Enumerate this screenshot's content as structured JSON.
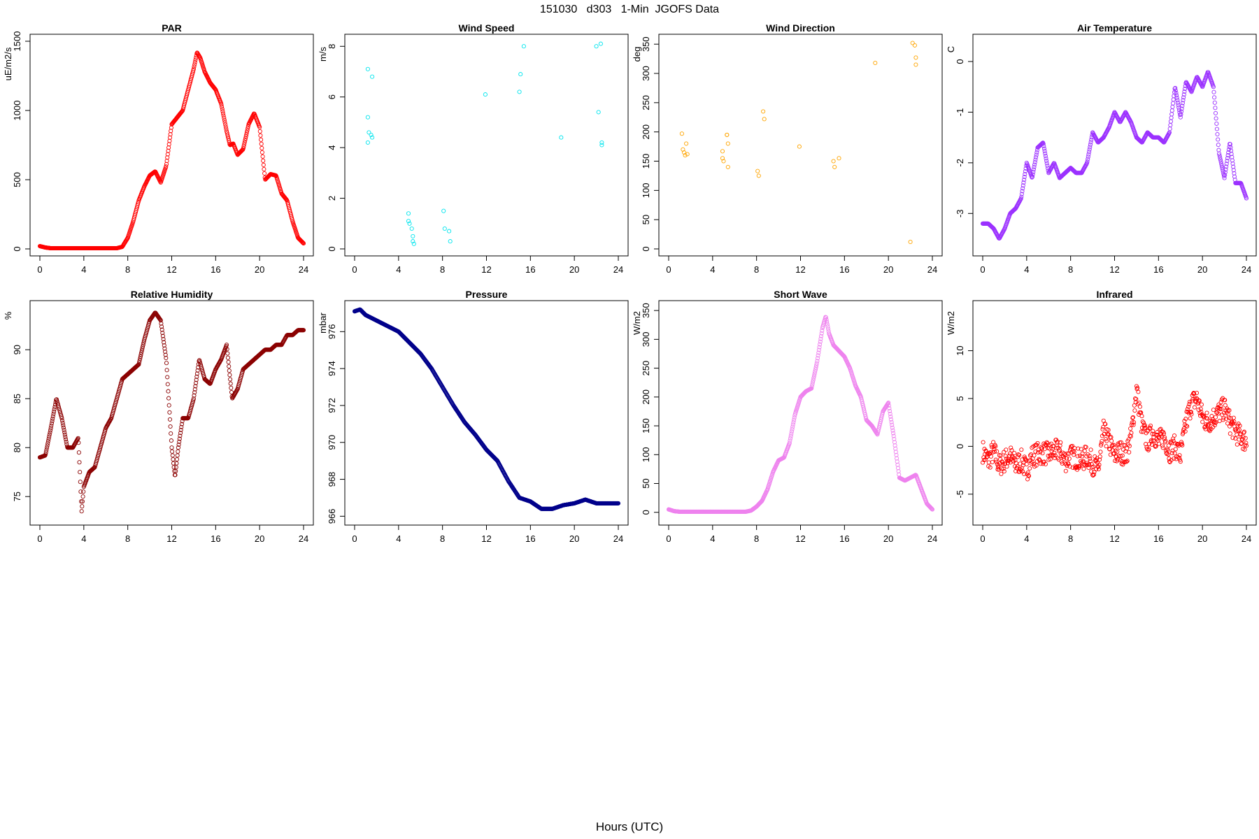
{
  "figure": {
    "title": "151030   d303   1-Min  JGOFS Data",
    "xlabel": "Hours (UTC)"
  },
  "chart_data": [
    {
      "type": "scatter",
      "title": "PAR",
      "ylabel": "uE/m2/s",
      "color": "#ff0000",
      "xlim": [
        0,
        24
      ],
      "ylim": [
        0,
        1500
      ],
      "xticks": [
        0,
        4,
        8,
        12,
        16,
        20,
        24
      ],
      "yticks": [
        0,
        500,
        1000,
        1500
      ],
      "dense": true,
      "x": [
        0,
        0.5,
        1,
        2,
        3,
        4,
        5,
        6,
        7,
        7.5,
        8,
        8.5,
        9,
        9.5,
        10,
        10.5,
        11,
        11.5,
        12,
        12.5,
        13,
        13.5,
        14,
        14.3,
        14.6,
        15,
        15.5,
        16,
        16.5,
        17,
        17.3,
        17.6,
        18,
        18.5,
        19,
        19.5,
        20,
        20.5,
        21,
        21.5,
        22,
        22.5,
        23,
        23.5,
        24
      ],
      "y": [
        20,
        10,
        5,
        5,
        5,
        5,
        5,
        5,
        5,
        15,
        80,
        200,
        350,
        450,
        530,
        560,
        480,
        600,
        900,
        950,
        1000,
        1150,
        1300,
        1420,
        1380,
        1280,
        1200,
        1150,
        1050,
        850,
        750,
        760,
        680,
        720,
        900,
        980,
        880,
        500,
        540,
        530,
        400,
        350,
        200,
        80,
        40
      ]
    },
    {
      "type": "scatter",
      "title": "Wind Speed",
      "ylabel": "m/s",
      "color": "#00e5ee",
      "xlim": [
        0,
        24
      ],
      "ylim": [
        0,
        8.2
      ],
      "xticks": [
        0,
        4,
        8,
        12,
        16,
        20,
        24
      ],
      "yticks": [
        0,
        2,
        4,
        6,
        8
      ],
      "dense": false,
      "x": [
        1.2,
        1.2,
        1.3,
        1.5,
        1.6,
        1.6,
        1.2,
        4.9,
        4.9,
        5.0,
        5.2,
        5.3,
        5.3,
        5.4,
        8.1,
        8.2,
        8.6,
        8.7,
        11.9,
        15.0,
        15.1,
        15.4,
        18.8,
        22.0,
        22.2,
        22.4,
        22.5,
        22.5
      ],
      "y": [
        7.1,
        5.2,
        4.6,
        4.5,
        4.4,
        6.8,
        4.2,
        1.4,
        1.1,
        1.0,
        0.8,
        0.5,
        0.3,
        0.2,
        1.5,
        0.8,
        0.7,
        0.3,
        6.1,
        6.2,
        6.9,
        8.0,
        4.4,
        8.0,
        5.4,
        8.1,
        4.2,
        4.1
      ]
    },
    {
      "type": "scatter",
      "title": "Wind Direction",
      "ylabel": "deg",
      "color": "#ffa500",
      "xlim": [
        0,
        24
      ],
      "ylim": [
        0,
        355
      ],
      "xticks": [
        0,
        4,
        8,
        12,
        16,
        20,
        24
      ],
      "yticks": [
        0,
        50,
        100,
        150,
        200,
        250,
        300,
        350
      ],
      "dense": false,
      "x": [
        1.2,
        1.3,
        1.4,
        1.5,
        1.6,
        1.7,
        4.9,
        4.9,
        5.0,
        5.3,
        5.3,
        5.4,
        5.4,
        8.1,
        8.2,
        8.6,
        8.7,
        11.9,
        15.0,
        15.1,
        15.5,
        18.8,
        22.0,
        22.2,
        22.4,
        22.5,
        22.5
      ],
      "y": [
        197,
        170,
        165,
        160,
        180,
        162,
        167,
        155,
        150,
        195,
        195,
        180,
        140,
        133,
        125,
        235,
        222,
        175,
        150,
        140,
        155,
        318,
        12,
        352,
        348,
        327,
        315
      ]
    },
    {
      "type": "scatter",
      "title": "Air Temperature",
      "ylabel": "C",
      "color": "#9b30ff",
      "xlim": [
        0,
        24
      ],
      "ylim": [
        -3.7,
        0.4
      ],
      "xticks": [
        0,
        4,
        8,
        12,
        16,
        20,
        24
      ],
      "yticks": [
        -3,
        -2,
        -1,
        0
      ],
      "dense": true,
      "x": [
        0,
        0.5,
        1,
        1.5,
        2,
        2.5,
        3,
        3.5,
        4,
        4.5,
        5,
        5.5,
        6,
        6.5,
        7,
        7.5,
        8,
        8.5,
        9,
        9.5,
        10,
        10.5,
        11,
        11.5,
        12,
        12.5,
        13,
        13.5,
        14,
        14.5,
        15,
        15.5,
        16,
        16.5,
        17,
        17.5,
        18,
        18.5,
        19,
        19.5,
        20,
        20.5,
        21,
        21.5,
        22,
        22.5,
        23,
        23.5,
        24
      ],
      "y": [
        -3.2,
        -3.2,
        -3.3,
        -3.5,
        -3.3,
        -3.0,
        -2.9,
        -2.7,
        -2.0,
        -2.3,
        -1.7,
        -1.6,
        -2.2,
        -2.0,
        -2.3,
        -2.2,
        -2.1,
        -2.2,
        -2.2,
        -2.0,
        -1.4,
        -1.6,
        -1.5,
        -1.3,
        -1.0,
        -1.2,
        -1.0,
        -1.2,
        -1.5,
        -1.6,
        -1.4,
        -1.5,
        -1.5,
        -1.6,
        -1.4,
        -0.5,
        -1.1,
        -0.4,
        -0.6,
        -0.3,
        -0.5,
        -0.2,
        -0.5,
        -1.8,
        -2.3,
        -1.6,
        -2.4,
        -2.4,
        -2.7
      ]
    },
    {
      "type": "scatter",
      "title": "Relative Humidity",
      "ylabel": "%",
      "color": "#8b0000",
      "xlim": [
        0,
        24
      ],
      "ylim": [
        72.8,
        94.3
      ],
      "xticks": [
        0,
        4,
        8,
        12,
        16,
        20,
        24
      ],
      "yticks": [
        75,
        80,
        85,
        90
      ],
      "dense": true,
      "x": [
        0,
        0.5,
        1,
        1.5,
        2,
        2.5,
        3,
        3.5,
        3.8,
        4,
        4.5,
        5,
        5.5,
        6,
        6.5,
        7,
        7.5,
        8,
        8.5,
        9,
        9.5,
        10,
        10.5,
        11,
        11.5,
        12,
        12.3,
        12.6,
        13,
        13.5,
        14,
        14.5,
        15,
        15.5,
        16,
        16.5,
        17,
        17.5,
        18,
        18.5,
        19,
        19.5,
        20,
        20.5,
        21,
        21.5,
        22,
        22.5,
        23,
        23.5,
        24
      ],
      "y": [
        79,
        79.2,
        82,
        85,
        83,
        80,
        80,
        81,
        73.5,
        76,
        77.5,
        78,
        80,
        82,
        83,
        85,
        87,
        87.5,
        88,
        88.5,
        91,
        93,
        93.8,
        93,
        89,
        80,
        77,
        80,
        83,
        83,
        85,
        89,
        87,
        86.5,
        88,
        89,
        90.5,
        85,
        86,
        88,
        88.5,
        89,
        89.5,
        90,
        90,
        90.5,
        90.5,
        91.5,
        91.5,
        92,
        92
      ]
    },
    {
      "type": "scatter",
      "title": "Pressure",
      "ylabel": "mbar",
      "color": "#00008b",
      "xlim": [
        0,
        24
      ],
      "ylim": [
        965.9,
        977.3
      ],
      "xticks": [
        0,
        4,
        8,
        12,
        16,
        20,
        24
      ],
      "yticks": [
        966,
        968,
        970,
        972,
        974,
        976
      ],
      "dense": true,
      "x": [
        0,
        0.5,
        1,
        2,
        3,
        4,
        5,
        6,
        7,
        8,
        9,
        10,
        11,
        12,
        13,
        14,
        15,
        16,
        17,
        18,
        19,
        20,
        21,
        22,
        23,
        24
      ],
      "y": [
        977.1,
        977.2,
        976.9,
        976.6,
        976.3,
        976.0,
        975.4,
        974.8,
        974.0,
        973.0,
        972.0,
        971.1,
        970.4,
        969.6,
        969.0,
        967.9,
        967.0,
        966.8,
        966.4,
        966.4,
        966.6,
        966.7,
        966.9,
        966.7,
        966.7,
        966.7
      ]
    },
    {
      "type": "scatter",
      "title": "Short Wave",
      "ylabel": "W/m2",
      "color": "#ee82ee",
      "xlim": [
        0,
        24
      ],
      "ylim": [
        -10,
        355
      ],
      "xticks": [
        0,
        4,
        8,
        12,
        16,
        20,
        24
      ],
      "yticks": [
        0,
        50,
        100,
        150,
        200,
        250,
        300,
        350
      ],
      "dense": true,
      "x": [
        0,
        0.5,
        1,
        2,
        3,
        4,
        5,
        6,
        7,
        7.5,
        8,
        8.5,
        9,
        9.5,
        10,
        10.5,
        11,
        11.5,
        12,
        12.5,
        13,
        13.5,
        14,
        14.3,
        14.6,
        15,
        15.5,
        16,
        16.5,
        17,
        17.5,
        18,
        18.5,
        19,
        19.5,
        20,
        20.5,
        21,
        21.5,
        22,
        22.5,
        23,
        23.5,
        24
      ],
      "y": [
        5,
        2,
        1,
        1,
        1,
        1,
        1,
        1,
        1,
        3,
        10,
        20,
        40,
        70,
        90,
        95,
        120,
        170,
        200,
        210,
        215,
        260,
        320,
        340,
        310,
        290,
        280,
        270,
        250,
        220,
        200,
        160,
        150,
        135,
        175,
        190,
        130,
        60,
        55,
        60,
        65,
        40,
        15,
        5
      ]
    },
    {
      "type": "scatter",
      "title": "Infrared",
      "ylabel": "W/m2",
      "color": "#ff0000",
      "xlim": [
        0,
        24
      ],
      "ylim": [
        -7.5,
        14.5
      ],
      "xticks": [
        0,
        4,
        8,
        12,
        16,
        20,
        24
      ],
      "yticks": [
        -5,
        0,
        5,
        10
      ],
      "dense": true,
      "jitter": 1.2,
      "x": [
        0,
        0.5,
        1,
        1.5,
        2,
        2.5,
        3,
        3.5,
        4,
        4.5,
        5,
        5.5,
        6,
        6.5,
        7,
        7.5,
        8,
        8.5,
        9,
        9.5,
        10,
        10.5,
        11,
        11.5,
        12,
        12.5,
        13,
        13.5,
        14,
        14.5,
        15,
        15.5,
        16,
        16.5,
        17,
        17.5,
        18,
        18.5,
        19,
        19.5,
        20,
        20.5,
        21,
        21.5,
        22,
        22.5,
        23,
        23.5,
        24
      ],
      "y": [
        -0.5,
        -1.5,
        -0.5,
        -2,
        -1.5,
        -1,
        -2,
        -1.5,
        -2.5,
        -1,
        -0.8,
        -0.7,
        -0.8,
        -0.5,
        -0.5,
        -1.5,
        -1,
        -1.2,
        -1.5,
        -1,
        -1.8,
        -2.5,
        1.5,
        0.5,
        -1,
        -0.5,
        -1,
        1,
        6,
        2,
        0.5,
        1.5,
        0.5,
        1,
        -0.5,
        0,
        -1,
        2.5,
        4.5,
        5,
        3,
        2.5,
        3,
        3.5,
        4,
        2.5,
        1.5,
        1,
        0.5
      ]
    }
  ]
}
